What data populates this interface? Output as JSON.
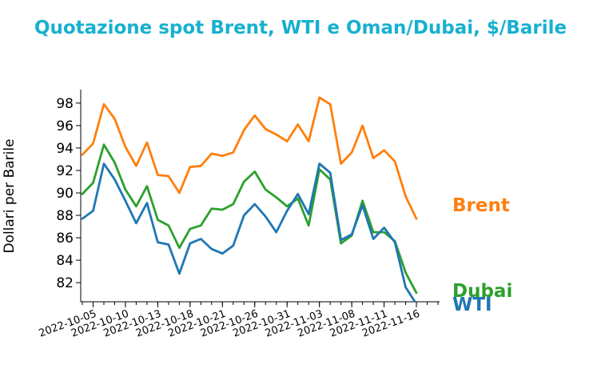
{
  "chart_data": {
    "type": "line",
    "title": "Quotazione spot Brent, WTI e Oman/Dubai, $/Barile",
    "xlabel": "",
    "ylabel": "Dollari per Barile",
    "x_tick_labels": [
      "2022-10-05",
      "2022-10-10",
      "2022-10-13",
      "2022-10-18",
      "2022-10-21",
      "2022-10-26",
      "2022-10-31",
      "2022-11-03",
      "2022-11-08",
      "2022-11-11",
      "2022-11-16"
    ],
    "y_ticks": [
      82,
      84,
      86,
      88,
      90,
      92,
      94,
      96,
      98
    ],
    "ylim": [
      80.3,
      99.2
    ],
    "grid": false,
    "legend": "inline labels at line ends",
    "x": [
      "2022-10-04",
      "2022-10-05",
      "2022-10-06",
      "2022-10-07",
      "2022-10-10",
      "2022-10-11",
      "2022-10-12",
      "2022-10-13",
      "2022-10-14",
      "2022-10-17",
      "2022-10-18",
      "2022-10-19",
      "2022-10-20",
      "2022-10-21",
      "2022-10-24",
      "2022-10-25",
      "2022-10-26",
      "2022-10-27",
      "2022-10-28",
      "2022-10-31",
      "2022-11-01",
      "2022-11-02",
      "2022-11-03",
      "2022-11-04",
      "2022-11-07",
      "2022-11-08",
      "2022-11-09",
      "2022-11-10",
      "2022-11-11",
      "2022-11-14",
      "2022-11-15",
      "2022-11-16",
      "2022-11-17",
      "2022-11-18"
    ],
    "series": [
      {
        "name": "Brent",
        "color": "#ff7f0e",
        "values": [
          93.4,
          94.4,
          97.9,
          96.6,
          94.1,
          92.4,
          94.5,
          91.6,
          91.5,
          90.0,
          92.3,
          92.4,
          93.5,
          93.3,
          93.6,
          95.6,
          96.9,
          95.7,
          95.2,
          94.6,
          96.1,
          94.6,
          98.5,
          97.9,
          92.6,
          93.6,
          96.0,
          93.1,
          93.8,
          92.8,
          89.7,
          87.7,
          null,
          null
        ]
      },
      {
        "name": "Dubai",
        "color": "#2ca02c",
        "values": [
          89.9,
          90.9,
          94.3,
          92.7,
          90.3,
          88.8,
          90.6,
          87.6,
          87.1,
          85.1,
          86.8,
          87.1,
          88.6,
          88.5,
          89.0,
          91.0,
          91.9,
          90.3,
          89.6,
          88.8,
          89.5,
          87.1,
          92.1,
          91.2,
          85.5,
          86.2,
          89.3,
          86.5,
          86.5,
          85.7,
          82.9,
          81.1,
          null,
          null
        ]
      },
      {
        "name": "WTI",
        "color": "#1f77b4",
        "values": [
          87.7,
          88.4,
          92.6,
          91.2,
          89.3,
          87.3,
          89.1,
          85.6,
          85.4,
          82.8,
          85.5,
          85.9,
          85.0,
          84.6,
          85.3,
          88.0,
          89.0,
          87.9,
          86.5,
          88.4,
          89.9,
          88.1,
          92.6,
          91.8,
          85.8,
          86.3,
          88.9,
          85.9,
          86.9,
          85.6,
          81.6,
          80.1,
          null,
          null
        ]
      }
    ]
  }
}
